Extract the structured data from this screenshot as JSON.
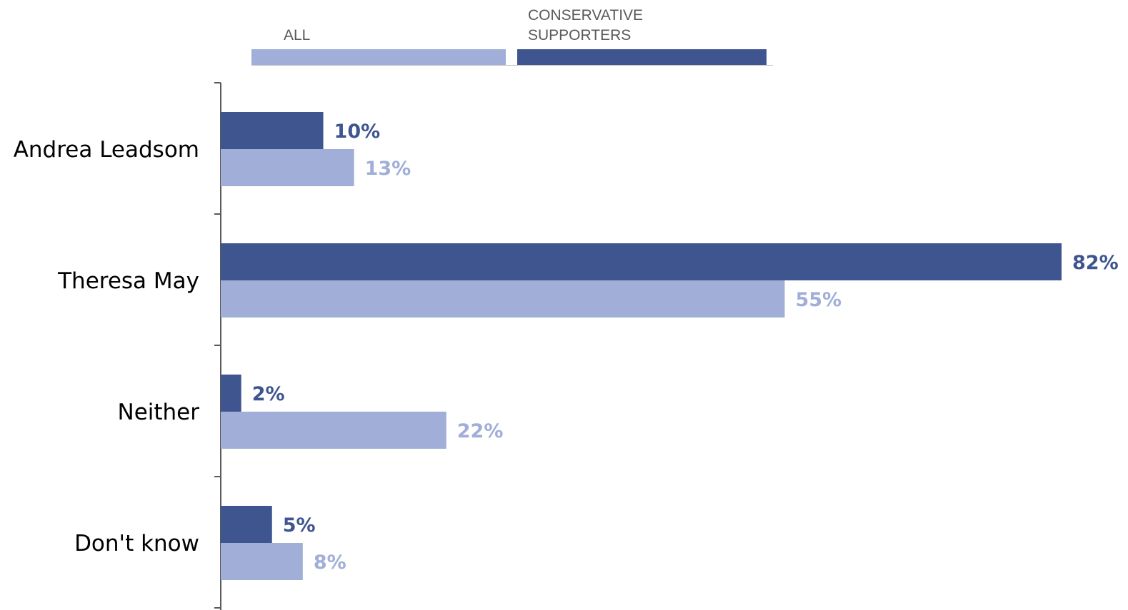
{
  "chart_data": {
    "type": "bar",
    "orientation": "horizontal",
    "categories": [
      "Andrea Leadsom",
      "Theresa May",
      "Neither",
      "Don't know"
    ],
    "series": [
      {
        "name": "CONSERVATIVE SUPPORTERS",
        "values": [
          10,
          82,
          2,
          5
        ],
        "labels": [
          "10%",
          "82%",
          "2%",
          "5%"
        ],
        "color": "#3f5590"
      },
      {
        "name": "ALL",
        "values": [
          13,
          55,
          22,
          8
        ],
        "labels": [
          "13%",
          "55%",
          "22%",
          "8%"
        ],
        "color": "#a0aed8"
      }
    ],
    "legend": {
      "placement": "top",
      "items": [
        {
          "label": "ALL",
          "color": "#a0aed8"
        },
        {
          "label_lines": [
            "CONSERVATIVE",
            "SUPPORTERS"
          ],
          "color": "#3f5590"
        }
      ]
    },
    "xlim": [
      0,
      82
    ],
    "grid": false,
    "title": "",
    "xlabel": "",
    "ylabel": ""
  }
}
